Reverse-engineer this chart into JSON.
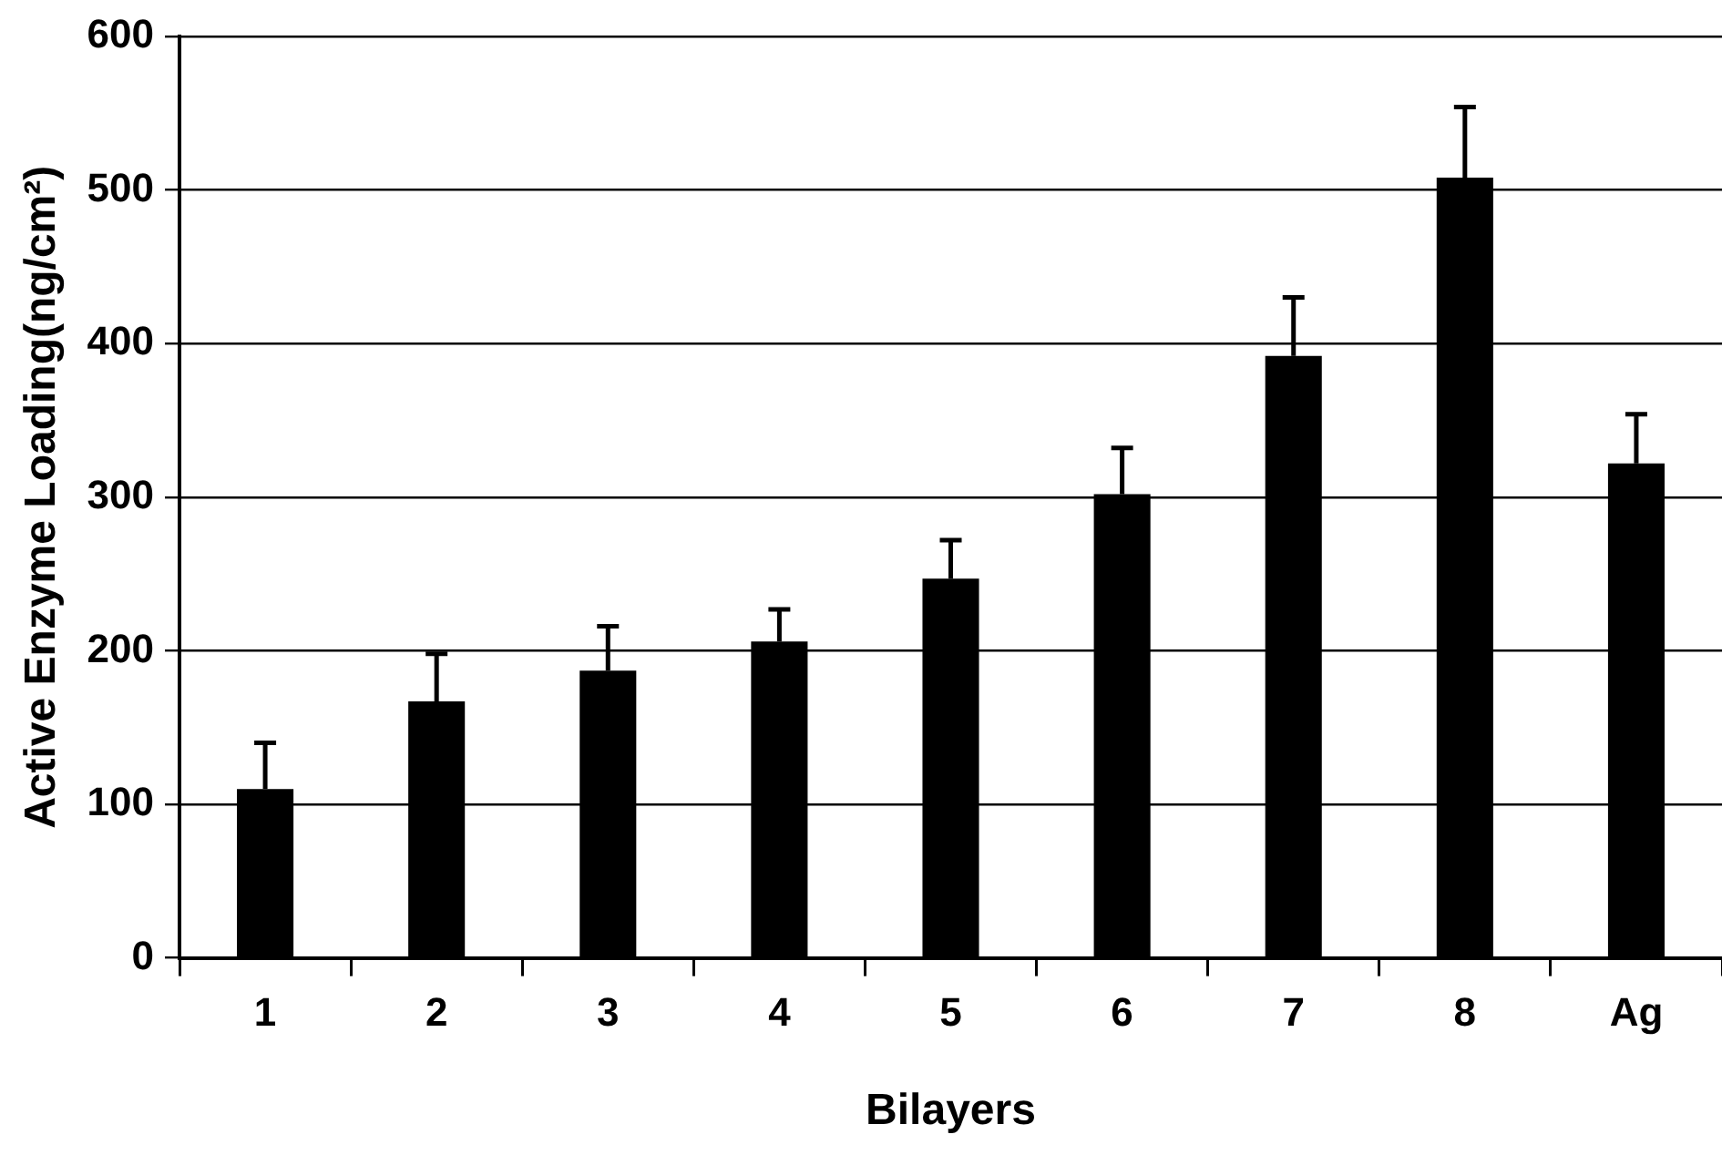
{
  "chart_data": {
    "type": "bar",
    "xlabel": "Bilayers",
    "ylabel": "Active Enzyme Loading(ng/cm²)",
    "categories": [
      "1",
      "2",
      "3",
      "4",
      "5",
      "6",
      "7",
      "8",
      "Ag"
    ],
    "values": [
      110,
      167,
      187,
      206,
      247,
      302,
      392,
      508,
      322
    ],
    "errors": [
      [
        110,
        140
      ],
      [
        167,
        198
      ],
      [
        187,
        216
      ],
      [
        206,
        227
      ],
      [
        247,
        272
      ],
      [
        302,
        332
      ],
      [
        392,
        430
      ],
      [
        508,
        554
      ],
      [
        322,
        354
      ]
    ],
    "color": "#000000",
    "ylim": [
      0,
      600
    ],
    "yticks": [
      0,
      100,
      200,
      300,
      400,
      500,
      600
    ],
    "grid": "y"
  }
}
